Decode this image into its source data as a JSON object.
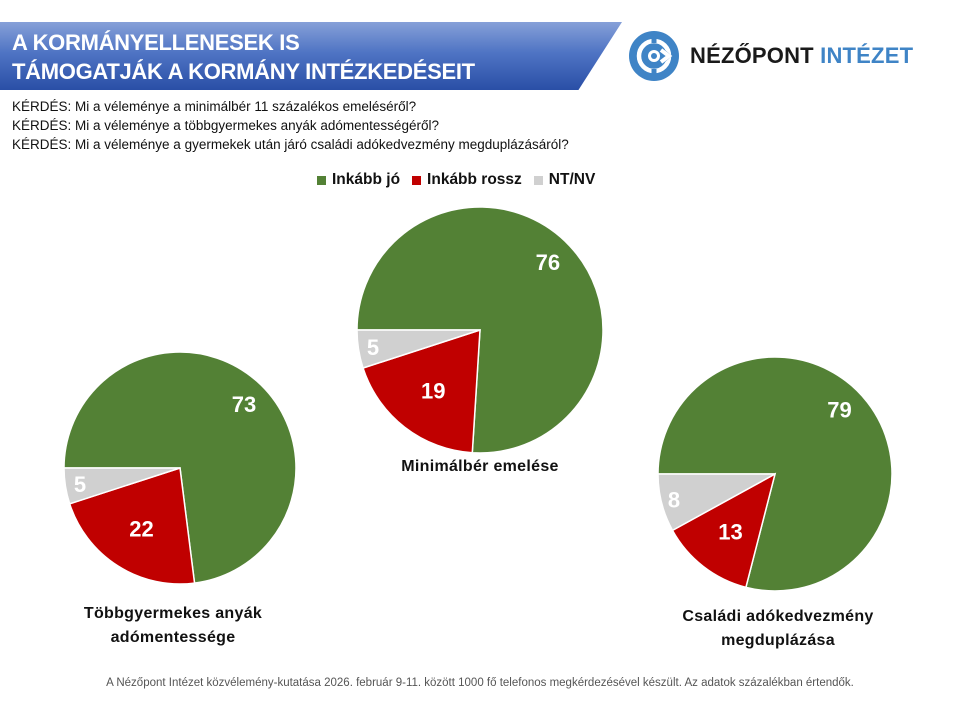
{
  "header": {
    "title_line1": "A KORMÁNYELLENESEK IS",
    "title_line2": "TÁMOGATJÁK A KORMÁNY INTÉZKEDÉSEIT",
    "logo_icon": "nezopont-target-icon",
    "logo_text_dark": "NÉZŐPONT",
    "logo_text_blue": "INTÉZET"
  },
  "questions": [
    "KÉRDÉS: Mi a véleménye a minimálbér 11 százalékos emeléséről?",
    "KÉRDÉS: Mi a véleménye a többgyermekes anyák adómentességéről?",
    "KÉRDÉS: Mi a véleménye a gyermekek után járó családi adókedvezmény megduplázásáról?"
  ],
  "colors": {
    "good": "#538135",
    "bad": "#c00000",
    "na": "#d0d0d0",
    "banner": "#3a5fb5",
    "logo_blue": "#3f84c6"
  },
  "chart_data": {
    "type": "pie",
    "legend": [
      "Inkább jó",
      "Inkább rossz",
      "NT/NV"
    ],
    "legend_position": "top-center",
    "unit": "%",
    "pies": [
      {
        "id": "center",
        "title": "Minimálbér emelése",
        "title_lines": [
          "Minimálbér emelése"
        ],
        "values": [
          76,
          19,
          5
        ]
      },
      {
        "id": "left",
        "title": "Többgyermekes anyák adómentessége",
        "title_lines": [
          "Többgyermekes anyák",
          "adómentessége"
        ],
        "values": [
          73,
          22,
          5
        ]
      },
      {
        "id": "right",
        "title": "Családi adókedvezmény megduplázása",
        "title_lines": [
          "Családi adókedvezmény",
          "megduplázása"
        ],
        "values": [
          79,
          13,
          8
        ]
      }
    ]
  },
  "footer": "A Nézőpont Intézet közvélemény-kutatása 2026. február 9-11. között 1000 fő telefonos megkérdezésével készült. Az adatok százalékban értendők."
}
